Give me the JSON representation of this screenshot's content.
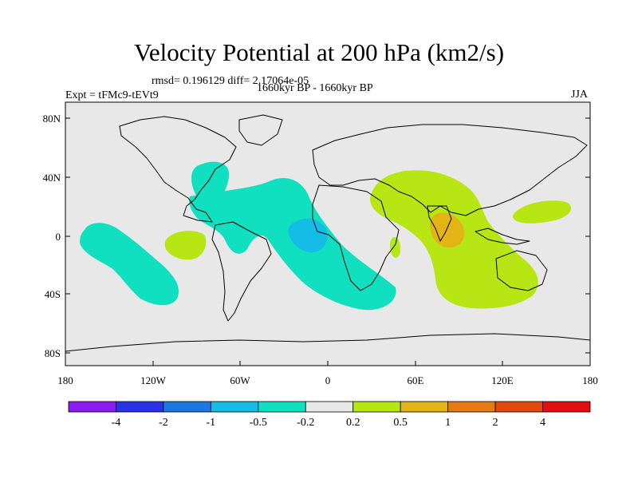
{
  "title": "Velocity Potential at 200 hPa (km2/s)",
  "rmsd_line": "rmsd= 0.196129 diff= 2.17064e-05",
  "expt_line": "Expt = tFMc9-tEVt9",
  "period_line": "1660kyr BP - 1660kyr BP",
  "season": "JJA",
  "y_ticks": [
    "80N",
    "40N",
    "0",
    "40S",
    "80S"
  ],
  "x_ticks": [
    "180",
    "120W",
    "60W",
    "0",
    "60E",
    "120E",
    "180"
  ],
  "colorbar": {
    "labels": [
      "-4",
      "-2",
      "-1",
      "-0.5",
      "-0.2",
      "0.2",
      "0.5",
      "1",
      "2",
      "4"
    ],
    "colors": [
      "#8a1cf0",
      "#2a32e6",
      "#1a78e2",
      "#14bde6",
      "#10e0c0",
      "#e8e8e8",
      "#b8e614",
      "#e2b414",
      "#e47a14",
      "#e2480c",
      "#e01010"
    ]
  },
  "colors": {
    "ocean_bg": "#e8e8e8",
    "neg_weak": "#10e0c0",
    "neg_mid": "#14bde6",
    "pos_weak": "#b8e614",
    "pos_mid": "#e2b414"
  }
}
